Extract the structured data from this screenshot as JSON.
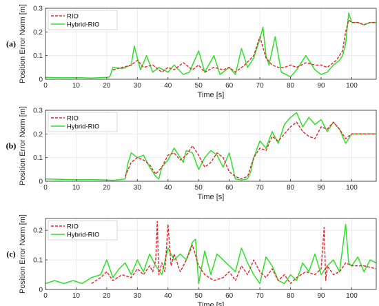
{
  "colors": {
    "rio": "#e8202a",
    "hybrid": "#2ee02a",
    "grid": "#e6e6e6",
    "axis": "#262626"
  },
  "chart_data": [
    {
      "type": "line",
      "panel_label": "(a)",
      "xlabel": "Time [s]",
      "ylabel": "Position Error Norm [m]",
      "xlim": [
        0,
        108
      ],
      "ylim": [
        0,
        0.3
      ],
      "xticks": [
        0,
        10,
        20,
        30,
        40,
        50,
        60,
        70,
        80,
        90,
        100
      ],
      "yticks": [
        0,
        0.1,
        0.2,
        0.3
      ],
      "ytick_labels": [
        "0",
        "0.1",
        "0.2",
        "0.3"
      ],
      "grid": true,
      "legend": "top-left",
      "series": [
        {
          "name": "RIO",
          "style": "dashed",
          "x": [
            22,
            25,
            28,
            30,
            32,
            35,
            38,
            40,
            42,
            45,
            48,
            50,
            52,
            55,
            58,
            60,
            62,
            65,
            68,
            70,
            72,
            74,
            76,
            78,
            80,
            82,
            85,
            88,
            90,
            92,
            95,
            97,
            98,
            99,
            100,
            102,
            104,
            106,
            108
          ],
          "y": [
            0.04,
            0.05,
            0.06,
            0.08,
            0.05,
            0.06,
            0.03,
            0.05,
            0.04,
            0.07,
            0.04,
            0.06,
            0.03,
            0.05,
            0.04,
            0.05,
            0.03,
            0.06,
            0.1,
            0.18,
            0.09,
            0.06,
            0.05,
            0.05,
            0.06,
            0.05,
            0.07,
            0.06,
            0.06,
            0.05,
            0.08,
            0.12,
            0.2,
            0.25,
            0.24,
            0.24,
            0.23,
            0.24,
            0.24
          ]
        },
        {
          "name": "Hybrid-RIO",
          "style": "solid",
          "x": [
            0,
            5,
            10,
            15,
            20,
            21,
            22,
            25,
            28,
            29,
            30,
            31,
            33,
            35,
            37,
            40,
            42,
            45,
            47,
            50,
            52,
            55,
            57,
            60,
            62,
            64,
            66,
            68,
            70,
            71,
            72,
            73,
            75,
            77,
            80,
            82,
            85,
            88,
            90,
            92,
            94,
            96,
            97,
            98,
            99,
            100,
            102,
            104,
            106,
            108
          ],
          "y": [
            0.008,
            0.006,
            0.007,
            0.005,
            0.008,
            0.01,
            0.05,
            0.045,
            0.06,
            0.14,
            0.09,
            0.04,
            0.1,
            0.03,
            0.05,
            0.03,
            0.06,
            0.02,
            0.03,
            0.12,
            0.03,
            0.1,
            0.02,
            0.05,
            0.02,
            0.13,
            0.05,
            0.09,
            0.17,
            0.22,
            0.1,
            0.06,
            0.18,
            0.03,
            0.01,
            0.04,
            0.1,
            0.04,
            0.02,
            0.03,
            0.06,
            0.08,
            0.1,
            0.15,
            0.28,
            0.24,
            0.24,
            0.23,
            0.24,
            0.24
          ]
        }
      ]
    },
    {
      "type": "line",
      "panel_label": "(b)",
      "xlabel": "Time [s]",
      "ylabel": "Position Error Norm [m]",
      "xlim": [
        0,
        108
      ],
      "ylim": [
        0,
        0.3
      ],
      "xticks": [
        0,
        10,
        20,
        30,
        40,
        50,
        60,
        70,
        80,
        90,
        100
      ],
      "yticks": [
        0,
        0.1,
        0.2,
        0.3
      ],
      "ytick_labels": [
        "0",
        "0.1",
        "0.2",
        "0.3"
      ],
      "grid": true,
      "legend": "top-left",
      "series": [
        {
          "name": "RIO",
          "style": "dashed",
          "x": [
            26,
            28,
            30,
            32,
            34,
            36,
            38,
            40,
            42,
            44,
            46,
            48,
            50,
            52,
            54,
            56,
            58,
            60,
            62,
            64,
            66,
            68,
            70,
            72,
            74,
            76,
            78,
            80,
            82,
            84,
            86,
            88,
            90,
            92,
            94,
            96,
            98,
            100,
            104,
            108
          ],
          "y": [
            0.02,
            0.08,
            0.1,
            0.09,
            0.07,
            0.03,
            0.06,
            0.11,
            0.12,
            0.09,
            0.11,
            0.15,
            0.11,
            0.06,
            0.08,
            0.12,
            0.1,
            0.04,
            0.02,
            0.01,
            0.02,
            0.1,
            0.14,
            0.13,
            0.19,
            0.17,
            0.2,
            0.23,
            0.25,
            0.21,
            0.19,
            0.18,
            0.23,
            0.22,
            0.25,
            0.22,
            0.18,
            0.2,
            0.2,
            0.2
          ]
        },
        {
          "name": "Hybrid-RIO",
          "style": "solid",
          "x": [
            0,
            5,
            10,
            15,
            20,
            22,
            24,
            26,
            27,
            28,
            30,
            32,
            34,
            36,
            37,
            38,
            40,
            42,
            44,
            45,
            46,
            48,
            50,
            52,
            54,
            56,
            58,
            60,
            62,
            64,
            66,
            67,
            68,
            70,
            72,
            74,
            76,
            78,
            80,
            82,
            84,
            86,
            88,
            90,
            92,
            94,
            96,
            98,
            100,
            104,
            108
          ],
          "y": [
            0.01,
            0.008,
            0.006,
            0.007,
            0.005,
            0.004,
            0.006,
            0.01,
            0.08,
            0.12,
            0.1,
            0.11,
            0.06,
            0.02,
            0.01,
            0.06,
            0.09,
            0.14,
            0.1,
            0.08,
            0.13,
            0.12,
            0.05,
            0.1,
            0.13,
            0.11,
            0.06,
            0.12,
            0.01,
            0.005,
            0.01,
            0.04,
            0.1,
            0.17,
            0.14,
            0.21,
            0.16,
            0.24,
            0.27,
            0.29,
            0.23,
            0.27,
            0.24,
            0.26,
            0.21,
            0.25,
            0.22,
            0.16,
            0.2,
            0.2,
            0.2
          ]
        }
      ]
    },
    {
      "type": "line",
      "panel_label": "(c)",
      "xlabel": "Time [s]",
      "ylabel": "Position Error Norm [m]",
      "xlim": [
        0,
        108
      ],
      "ylim": [
        0,
        0.24
      ],
      "xticks": [
        0,
        10,
        20,
        30,
        40,
        50,
        60,
        70,
        80,
        90,
        100
      ],
      "yticks": [
        0,
        0.1,
        0.2
      ],
      "ytick_labels": [
        "0",
        "0.1",
        "0.2"
      ],
      "grid": true,
      "legend": "top-left",
      "series": [
        {
          "name": "RIO",
          "style": "dashed",
          "x": [
            15,
            18,
            20,
            22,
            25,
            28,
            30,
            32,
            34,
            35,
            36,
            36.5,
            37,
            38,
            39,
            40,
            41,
            42,
            44,
            46,
            48,
            50,
            52,
            55,
            58,
            60,
            62,
            64,
            66,
            68,
            70,
            72,
            74,
            76,
            78,
            80,
            82,
            85,
            88,
            90,
            91,
            91.5,
            92,
            94,
            96,
            98,
            100,
            104,
            108
          ],
          "y": [
            0.02,
            0.04,
            0.06,
            0.03,
            0.05,
            0.04,
            0.07,
            0.05,
            0.08,
            0.06,
            0.1,
            0.23,
            0.05,
            0.09,
            0.06,
            0.22,
            0.08,
            0.12,
            0.06,
            0.1,
            0.15,
            0.08,
            0.05,
            0.03,
            0.04,
            0.06,
            0.03,
            0.08,
            0.05,
            0.1,
            0.06,
            0.04,
            0.07,
            0.03,
            0.05,
            0.02,
            0.04,
            0.06,
            0.05,
            0.07,
            0.21,
            0.03,
            0.08,
            0.05,
            0.06,
            0.09,
            0.08,
            0.08,
            0.07
          ]
        },
        {
          "name": "Hybrid-RIO",
          "style": "solid",
          "x": [
            0,
            3,
            6,
            9,
            12,
            15,
            18,
            20,
            22,
            24,
            26,
            28,
            30,
            32,
            34,
            36,
            38,
            40,
            42,
            44,
            46,
            48,
            49,
            50,
            52,
            54,
            56,
            58,
            60,
            62,
            64,
            66,
            68,
            70,
            72,
            74,
            76,
            78,
            80,
            82,
            84,
            86,
            88,
            90,
            92,
            94,
            96,
            98,
            99,
            100,
            102,
            104,
            106,
            108
          ],
          "y": [
            0.02,
            0.03,
            0.02,
            0.03,
            0.02,
            0.04,
            0.05,
            0.1,
            0.04,
            0.07,
            0.09,
            0.05,
            0.1,
            0.06,
            0.12,
            0.08,
            0.05,
            0.14,
            0.1,
            0.12,
            0.1,
            0.16,
            0.17,
            0.02,
            0.13,
            0.05,
            0.12,
            0.1,
            0.08,
            0.06,
            0.14,
            0.09,
            0.05,
            0.02,
            0.11,
            0.08,
            0.03,
            0.02,
            0.05,
            0.03,
            0.09,
            0.06,
            0.12,
            0.05,
            0.08,
            0.1,
            0.06,
            0.22,
            0.09,
            0.08,
            0.11,
            0.06,
            0.1,
            0.09
          ]
        }
      ]
    }
  ]
}
